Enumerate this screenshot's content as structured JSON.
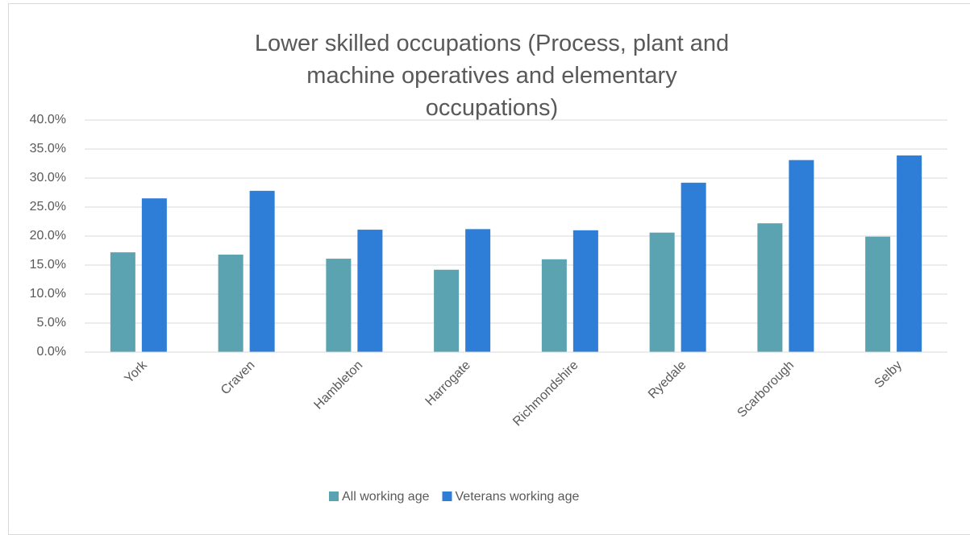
{
  "chart_data": {
    "type": "bar",
    "title": "Lower skilled occupations (Process, plant and machine operatives and elementary occupations)",
    "categories": [
      "York",
      "Craven",
      "Hambleton",
      "Harrogate",
      "Richmondshire",
      "Ryedale",
      "Scarborough",
      "Selby"
    ],
    "series": [
      {
        "name": "All working age",
        "color": "#5ba3b0",
        "values": [
          17.2,
          16.8,
          16.1,
          14.2,
          16.0,
          20.6,
          22.2,
          19.9
        ]
      },
      {
        "name": "Veterans working age",
        "color": "#2e7dd6",
        "values": [
          26.5,
          27.8,
          21.1,
          21.2,
          21.0,
          29.2,
          33.1,
          33.9
        ]
      }
    ],
    "ylim": [
      0,
      40
    ],
    "yticks": [
      {
        "value": 0,
        "label": "0.0%"
      },
      {
        "value": 5,
        "label": "5.0%"
      },
      {
        "value": 10,
        "label": "10.0%"
      },
      {
        "value": 15,
        "label": "15.0%"
      },
      {
        "value": 20,
        "label": "20.0%"
      },
      {
        "value": 25,
        "label": "25.0%"
      },
      {
        "value": 30,
        "label": "30.0%"
      },
      {
        "value": 35,
        "label": "35.0%"
      },
      {
        "value": 40,
        "label": "40.0%"
      }
    ],
    "grid": true
  }
}
